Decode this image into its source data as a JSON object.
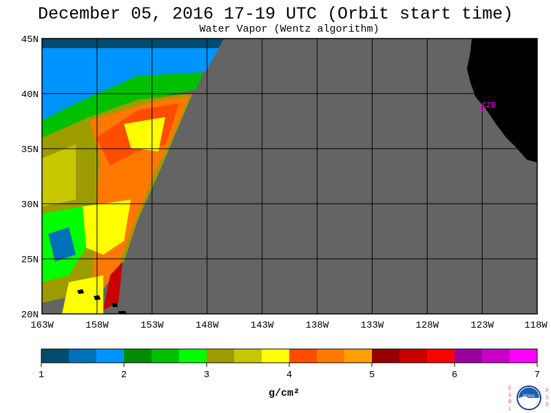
{
  "title": "December 05, 2016  17-19 UTC  (Orbit start time)",
  "subtitle": "Water Vapor (Wentz algorithm)",
  "map": {
    "lon_min": -163,
    "lon_max": -118,
    "lat_min": 20,
    "lat_max": 45,
    "x_ticks": [
      "163W",
      "158W",
      "153W",
      "148W",
      "143W",
      "138W",
      "133W",
      "128W",
      "123W",
      "118W"
    ],
    "y_ticks": [
      "45N",
      "40N",
      "35N",
      "30N",
      "25N",
      "20N"
    ],
    "grid": true,
    "no_data_color": "#646464",
    "land_color": "#000000",
    "station_label": "CZD",
    "station_color": "#ff00ff"
  },
  "colorbar": {
    "tick_labels": [
      "1",
      "2",
      "3",
      "4",
      "5",
      "6",
      "7"
    ],
    "units": "g/cm²",
    "colors": [
      "#004c6e",
      "#0070b8",
      "#0094ff",
      "#008c00",
      "#00c000",
      "#00ff00",
      "#9c9c00",
      "#c8c800",
      "#ffff00",
      "#ff4c00",
      "#ff7800",
      "#ffa000",
      "#960000",
      "#c80000",
      "#ff0000",
      "#9c009c",
      "#c800c8",
      "#ff00ff"
    ]
  },
  "logo": {
    "left_letters": [
      "E",
      "S",
      "R",
      "L"
    ],
    "right_letters": [
      "P",
      "S",
      "D"
    ],
    "text": "NOAA"
  }
}
